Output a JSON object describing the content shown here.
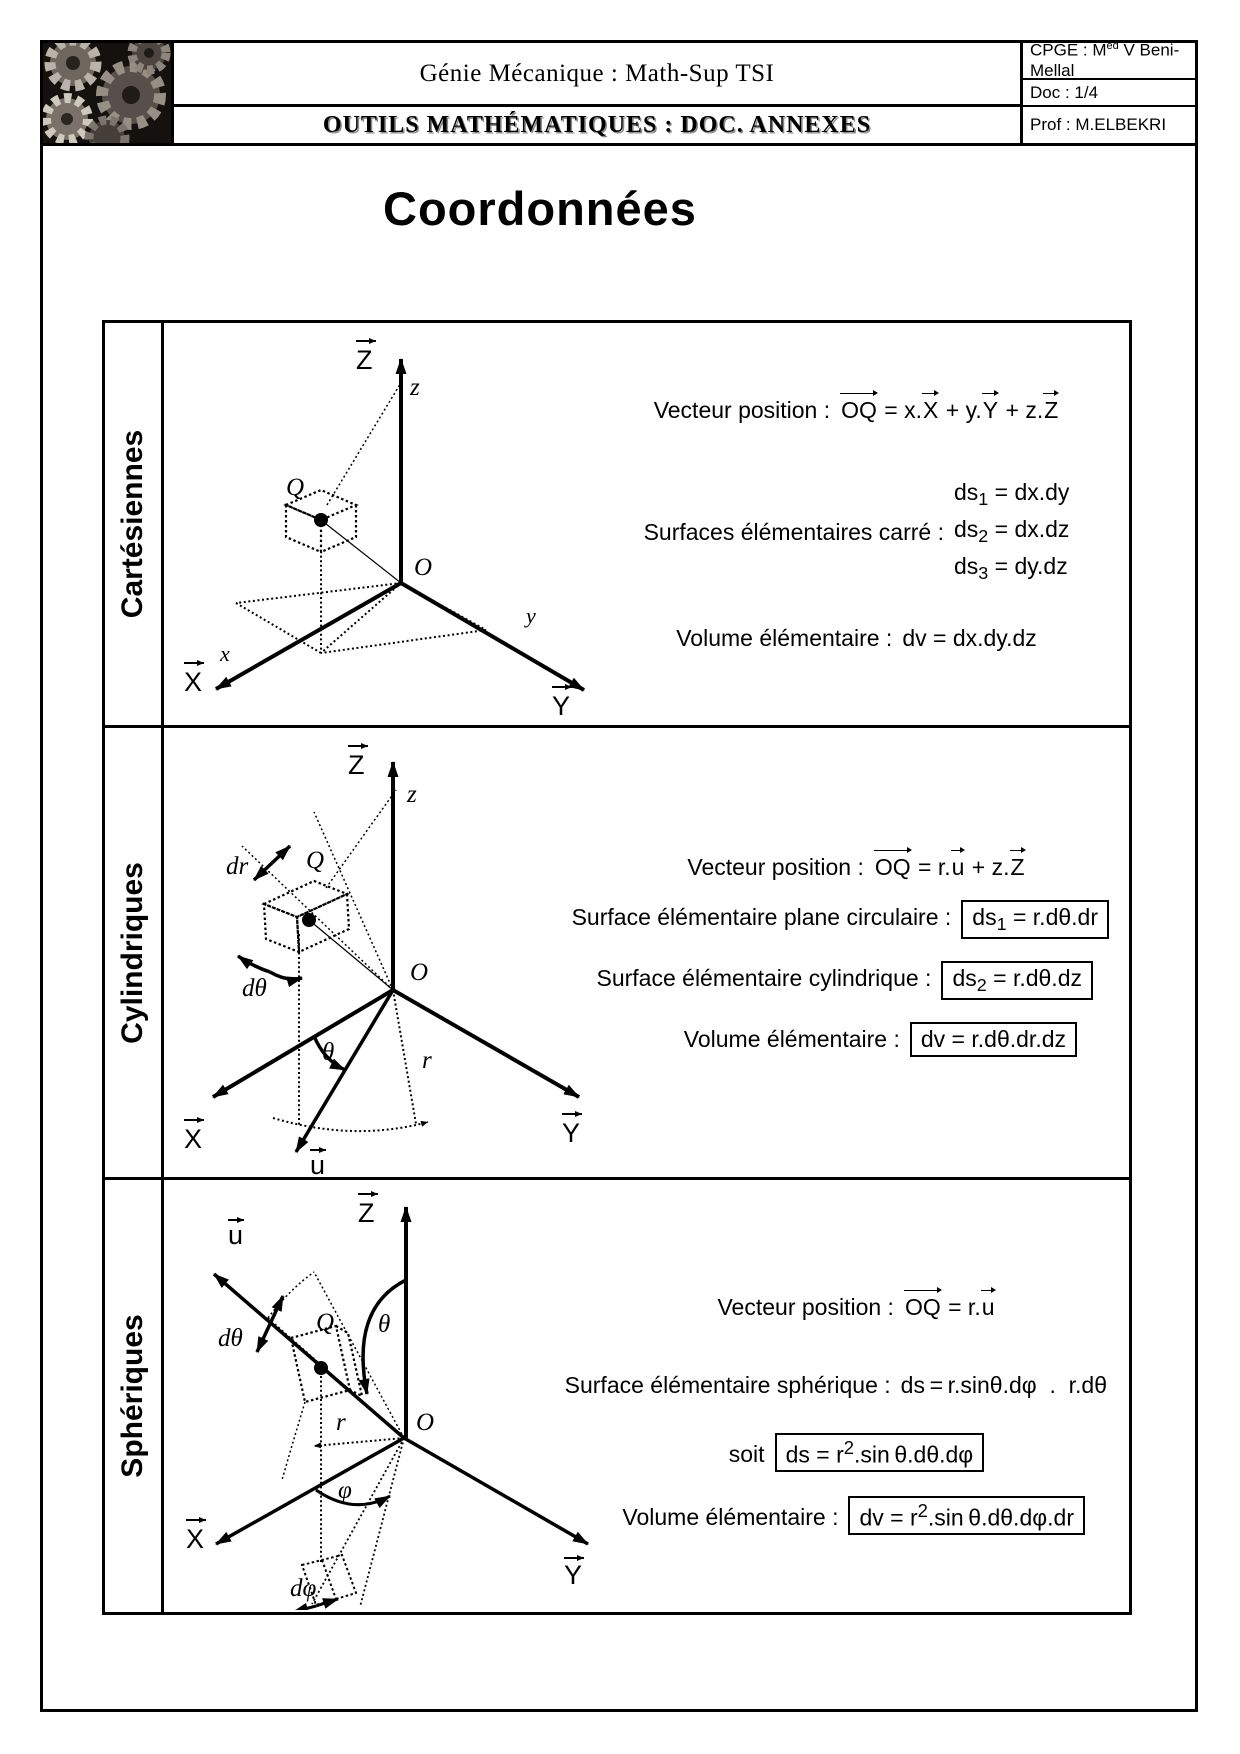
{
  "header": {
    "course_title": "Génie Mécanique : Math-Sup TSI",
    "doc_title": "OUTILS MATHÉMATIQUES : DOC. ANNEXES",
    "cpge_prefix": "CPGE : M",
    "cpge_sup": "ed",
    "cpge_suffix": " V Beni-Mellal",
    "doc_num": "Doc : 1/4",
    "prof": "Prof : M.ELBEKRI"
  },
  "page_title": "Coordonnées",
  "sections": [
    {
      "label": "Cartésiennes",
      "diagram": {
        "z_vec": "Z",
        "z": "z",
        "q": "Q",
        "o": "O",
        "x": "x",
        "y": "y",
        "x_vec": "X",
        "y_vec": "Y"
      },
      "position_label": "Vecteur position :",
      "position_formula": [
        {
          "text": "OQ",
          "arrow": true
        },
        {
          "text": " = x."
        },
        {
          "text": "X",
          "arrow": true
        },
        {
          "text": " + y."
        },
        {
          "text": "Y",
          "arrow": true
        },
        {
          "text": " + z."
        },
        {
          "text": "Z",
          "arrow": true
        }
      ],
      "surfaces_label": "Surfaces élémentaires carré :",
      "surface_formulas": [
        [
          {
            "text": "ds"
          },
          {
            "sub": "1"
          },
          {
            "text": " = dx.dy"
          }
        ],
        [
          {
            "text": "ds"
          },
          {
            "sub": "2"
          },
          {
            "text": " = dx.dz"
          }
        ],
        [
          {
            "text": "ds"
          },
          {
            "sub": "3"
          },
          {
            "text": " = dy.dz"
          }
        ]
      ],
      "volume_label": "Volume élémentaire :",
      "volume_formula": [
        {
          "text": "dv = dx.dy.dz"
        }
      ]
    },
    {
      "label": "Cylindriques",
      "diagram": {
        "z_vec": "Z",
        "z": "z",
        "q": "Q",
        "o": "O",
        "dr": "dr",
        "dtheta": "dθ",
        "theta": "θ",
        "r": "r",
        "u_vec": "u",
        "x_vec": "X",
        "y_vec": "Y"
      },
      "position_label": "Vecteur position :",
      "position_formula": [
        {
          "text": "OQ",
          "arrow": true
        },
        {
          "text": " = r."
        },
        {
          "text": "u",
          "arrow": true
        },
        {
          "text": " + z."
        },
        {
          "text": "Z",
          "arrow": true
        }
      ],
      "rows": [
        {
          "label": "Surface élémentaire plane circulaire :",
          "formula": [
            {
              "text": "ds"
            },
            {
              "sub": "1"
            },
            {
              "text": " = r.dθ.dr"
            }
          ],
          "boxed": true
        },
        {
          "label": "Surface élémentaire cylindrique :",
          "formula": [
            {
              "text": "ds"
            },
            {
              "sub": "2"
            },
            {
              "text": " = r.dθ.dz"
            }
          ],
          "boxed": true
        },
        {
          "label": "Volume élémentaire :",
          "formula": [
            {
              "text": "dv = r.dθ.dr.dz"
            }
          ],
          "boxed": true
        }
      ]
    },
    {
      "label": "Sphériques",
      "diagram": {
        "z_vec": "Z",
        "u_vec": "u",
        "q": "Q",
        "o": "O",
        "dtheta": "dθ",
        "theta": "θ",
        "r": "r",
        "phi": "φ",
        "dphi": "dφ",
        "x_vec": "X",
        "y_vec": "Y"
      },
      "position_label": "Vecteur position :",
      "position_formula": [
        {
          "text": "OQ",
          "arrow": true
        },
        {
          "text": " = r."
        },
        {
          "text": "u",
          "arrow": true
        }
      ],
      "rows": [
        {
          "label": "Surface élémentaire sphérique :",
          "formula": [
            {
              "text": "ds = r.sinθ.dφ  .  r.dθ"
            }
          ],
          "boxed": false
        },
        {
          "label": "soit",
          "formula": [
            {
              "text": "ds = r"
            },
            {
              "sup": "2"
            },
            {
              "text": ".sin θ.dθ.dφ"
            }
          ],
          "boxed": true
        },
        {
          "label": "Volume élémentaire :",
          "formula": [
            {
              "text": "dv = r"
            },
            {
              "sup": "2"
            },
            {
              "text": ".sin θ.dθ.dφ.dr"
            }
          ],
          "boxed": true
        }
      ]
    }
  ]
}
